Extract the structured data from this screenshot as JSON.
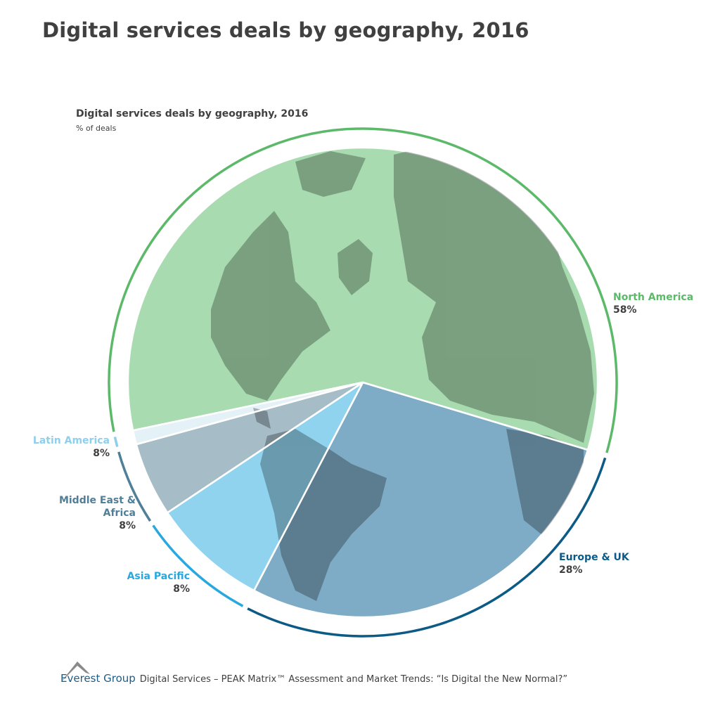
{
  "title": "Digital services deals by geography, 2016",
  "chart_data": {
    "type": "pie",
    "title": "Digital services deals by geography, 2016",
    "subtitle": "% of deals",
    "slices": [
      {
        "name": "North America",
        "value": 58,
        "label": "58%",
        "color": "#a8dcb0",
        "ring_color": "#5cb96a",
        "label_color": "#5cb96a"
      },
      {
        "name": "Europe & UK",
        "value": 28,
        "label": "28%",
        "color": "#7eabc5",
        "ring_color": "#0c5a86",
        "label_color": "#0c5a86"
      },
      {
        "name": "Asia Pacific",
        "value": 8,
        "label": "8%",
        "color": "#90d3ef",
        "ring_color": "#29a8e0",
        "label_color": "#29a8e0"
      },
      {
        "name": "Middle East & Africa",
        "value": 8,
        "label": "8%",
        "color": "#a6bcc7",
        "ring_color": "#4f7f99",
        "label_color": "#4f7f99"
      },
      {
        "name": "Latin America",
        "value": 8,
        "label": "8%",
        "color": "#e4f2f8",
        "ring_color": "#8ecfee",
        "label_color": "#8ecfee"
      }
    ],
    "background_image": "world-map-polar"
  },
  "footer": {
    "brand": "Everest Group",
    "text": "Digital Services – PEAK Matrix™ Assessment and Market Trends: “Is Digital the New Normal?”"
  }
}
